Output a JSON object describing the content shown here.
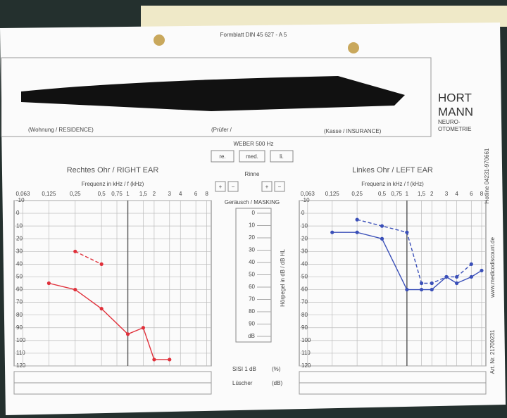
{
  "header": {
    "form": "Formblatt DIN 45 627 - A 5",
    "brand": [
      "HORT",
      "MANN"
    ],
    "brand_sub": [
      "NEURO-",
      "OTOMETRIE"
    ],
    "fields": [
      "(Wohnung / RESIDENCE)",
      "(Prüfer /",
      "(Kasse / INSURANCE)"
    ]
  },
  "weber": {
    "title": "WEBER 500 Hz",
    "buttons": [
      "re.",
      "med.",
      "li."
    ]
  },
  "rinne": {
    "title": "Rinne",
    "signs": [
      "+",
      "−",
      "+",
      "−"
    ]
  },
  "masking": {
    "title": "Geräusch / MASKING",
    "scale": [
      "0",
      "10",
      "20",
      "30",
      "40",
      "50",
      "60",
      "70",
      "80",
      "90",
      "dB"
    ],
    "axis_label": "Hörpegel in dB / dB HL"
  },
  "bottom": {
    "sisi": "SISI 1 dB",
    "sisi_unit": "(%)",
    "luscher": "Lüscher",
    "luscher_unit": "(dB)"
  },
  "side": [
    "Hotline 04231-970661",
    "www.medicodiscount.de",
    "Art. Nr. 21700231"
  ],
  "chart_data": [
    {
      "type": "line",
      "title": "Rechtes Ohr / RIGHT EAR",
      "xlabel": "Frequenz in kHz / f (kHz)",
      "xscale": "log",
      "y_inverted": true,
      "xlim": [
        0.05,
        9
      ],
      "ylim": [
        -10,
        120
      ],
      "xticks": [
        {
          "value": 0.063,
          "label": "0,063"
        },
        {
          "value": 0.125,
          "label": "0,125"
        },
        {
          "value": 0.25,
          "label": "0,25"
        },
        {
          "value": 0.5,
          "label": "0,5"
        },
        {
          "value": 0.75,
          "label": "0,75"
        },
        1,
        {
          "value": 1.5,
          "label": "1,5"
        },
        2,
        3,
        4,
        6,
        8
      ],
      "yticks": [
        -10,
        0,
        10,
        20,
        30,
        40,
        50,
        60,
        70,
        80,
        90,
        100,
        110,
        120
      ],
      "grid": true,
      "series": [
        {
          "color": "#e0303a",
          "dashed": false,
          "x": [
            0.125,
            0.25,
            0.5,
            1,
            1.5,
            2,
            3
          ],
          "values": [
            55,
            60,
            75,
            95,
            90,
            115,
            115
          ]
        },
        {
          "color": "#e0303a",
          "dashed": true,
          "x": [
            0.25,
            0.5
          ],
          "values": [
            30,
            40
          ]
        }
      ]
    },
    {
      "type": "line",
      "title": "Linkes Ohr / LEFT EAR",
      "xlabel": "Frequenz in kHz / f (kHz)",
      "xscale": "log",
      "y_inverted": true,
      "xlim": [
        0.05,
        9
      ],
      "ylim": [
        -10,
        120
      ],
      "xticks": [
        {
          "value": 0.063,
          "label": "0,063"
        },
        {
          "value": 0.125,
          "label": "0,125"
        },
        {
          "value": 0.25,
          "label": "0,25"
        },
        {
          "value": 0.5,
          "label": "0,5"
        },
        {
          "value": 0.75,
          "label": "0,75"
        },
        1,
        {
          "value": 1.5,
          "label": "1,5"
        },
        2,
        3,
        4,
        6,
        8
      ],
      "yticks": [
        -10,
        0,
        10,
        20,
        30,
        40,
        50,
        60,
        70,
        80,
        90,
        100,
        110,
        120
      ],
      "grid": true,
      "series": [
        {
          "color": "#3a4fb8",
          "dashed": false,
          "x": [
            0.125,
            0.25,
            0.5,
            1,
            1.5,
            2,
            3,
            4,
            6,
            8
          ],
          "values": [
            15,
            15,
            20,
            60,
            60,
            60,
            50,
            55,
            50,
            45
          ]
        },
        {
          "color": "#3a4fb8",
          "dashed": true,
          "x": [
            0.25,
            0.5,
            1,
            1.5,
            2,
            3,
            4,
            6
          ],
          "values": [
            5,
            10,
            15,
            55,
            55,
            50,
            50,
            40
          ]
        }
      ]
    }
  ]
}
